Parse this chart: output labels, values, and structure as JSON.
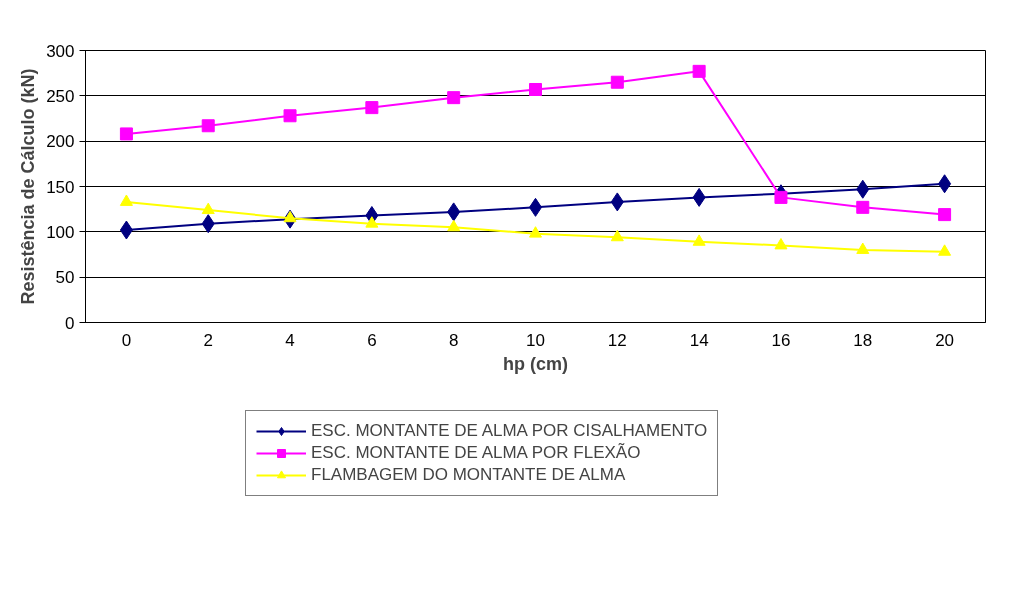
{
  "chart_data": {
    "type": "line",
    "xlabel": "hp (cm)",
    "ylabel": "Resistência de Cálculo (kN)",
    "categories": [
      "0",
      "2",
      "4",
      "6",
      "8",
      "10",
      "12",
      "14",
      "16",
      "18",
      "20"
    ],
    "series": [
      {
        "name": "ESC. MONTANTE DE ALMA POR CISALHAMENTO",
        "color": "#000080",
        "marker": "diamond",
        "values": [
          102,
          109,
          114,
          118,
          122,
          127,
          133,
          138,
          142,
          147,
          153
        ]
      },
      {
        "name": "ESC. MONTANTE DE ALMA POR FLEXÃO",
        "color": "#ff00ff",
        "marker": "square",
        "values": [
          208,
          217,
          228,
          237,
          248,
          257,
          265,
          277,
          138,
          127,
          119
        ]
      },
      {
        "name": "FLAMBAGEM DO MONTANTE DE ALMA",
        "color": "#ffff00",
        "marker": "triangle",
        "values": [
          133,
          124,
          115,
          109,
          105,
          98,
          94,
          89,
          85,
          80,
          78
        ]
      }
    ],
    "ylim": [
      0,
      300
    ],
    "yticks": [
      0,
      50,
      100,
      150,
      200,
      250,
      300
    ],
    "grid": "y",
    "legend": "bottom",
    "line_style": "solid"
  }
}
